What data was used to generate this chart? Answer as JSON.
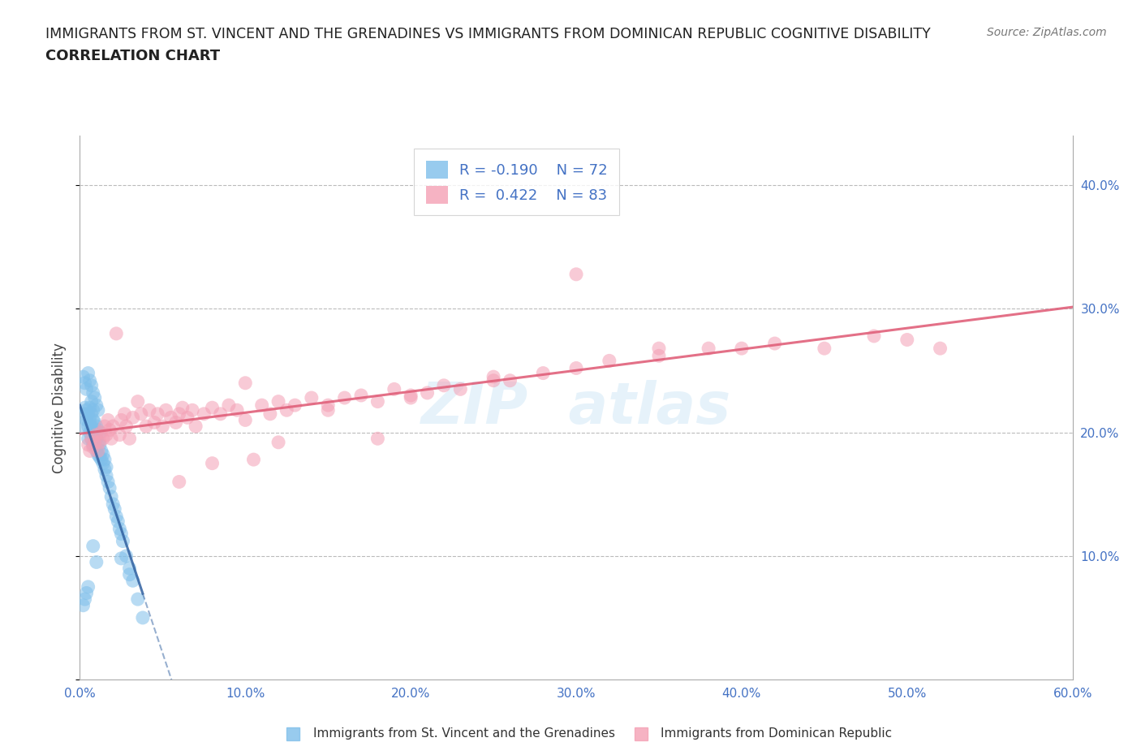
{
  "title_line1": "IMMIGRANTS FROM ST. VINCENT AND THE GRENADINES VS IMMIGRANTS FROM DOMINICAN REPUBLIC COGNITIVE DISABILITY",
  "title_line2": "CORRELATION CHART",
  "source": "Source: ZipAtlas.com",
  "ylabel": "Cognitive Disability",
  "xlim": [
    0.0,
    0.6
  ],
  "ylim": [
    0.0,
    0.44
  ],
  "x_ticks": [
    0.0,
    0.1,
    0.2,
    0.3,
    0.4,
    0.5,
    0.6
  ],
  "x_tick_labels": [
    "0.0%",
    "10.0%",
    "20.0%",
    "30.0%",
    "40.0%",
    "50.0%",
    "60.0%"
  ],
  "y_ticks": [
    0.0,
    0.1,
    0.2,
    0.3,
    0.4
  ],
  "right_y_ticks": [
    0.1,
    0.2,
    0.3,
    0.4
  ],
  "right_y_tick_labels": [
    "10.0%",
    "20.0%",
    "30.0%",
    "40.0%"
  ],
  "blue_R": -0.19,
  "blue_N": 72,
  "pink_R": 0.422,
  "pink_N": 83,
  "blue_color": "#7fbfea",
  "pink_color": "#f4a0b5",
  "blue_line_color": "#3060a0",
  "pink_line_color": "#e0607a",
  "blue_label": "Immigrants from St. Vincent and the Grenadines",
  "pink_label": "Immigrants from Dominican Republic",
  "legend_text_color": "#4472c4",
  "grid_color": "#bbbbbb",
  "blue_scatter_x": [
    0.002,
    0.003,
    0.003,
    0.004,
    0.004,
    0.005,
    0.005,
    0.005,
    0.006,
    0.006,
    0.006,
    0.007,
    0.007,
    0.007,
    0.007,
    0.008,
    0.008,
    0.008,
    0.008,
    0.009,
    0.009,
    0.009,
    0.01,
    0.01,
    0.01,
    0.011,
    0.011,
    0.011,
    0.012,
    0.012,
    0.012,
    0.013,
    0.013,
    0.014,
    0.014,
    0.015,
    0.015,
    0.016,
    0.016,
    0.017,
    0.018,
    0.019,
    0.02,
    0.021,
    0.022,
    0.023,
    0.024,
    0.025,
    0.026,
    0.028,
    0.03,
    0.032,
    0.035,
    0.038,
    0.002,
    0.003,
    0.004,
    0.005,
    0.006,
    0.007,
    0.008,
    0.009,
    0.01,
    0.011,
    0.002,
    0.003,
    0.004,
    0.005,
    0.025,
    0.03,
    0.008,
    0.01
  ],
  "blue_scatter_y": [
    0.205,
    0.215,
    0.22,
    0.21,
    0.218,
    0.195,
    0.205,
    0.215,
    0.2,
    0.21,
    0.22,
    0.195,
    0.205,
    0.215,
    0.225,
    0.19,
    0.2,
    0.21,
    0.218,
    0.192,
    0.2,
    0.208,
    0.185,
    0.195,
    0.205,
    0.182,
    0.192,
    0.202,
    0.18,
    0.19,
    0.2,
    0.178,
    0.185,
    0.175,
    0.182,
    0.17,
    0.178,
    0.165,
    0.172,
    0.16,
    0.155,
    0.148,
    0.142,
    0.138,
    0.132,
    0.128,
    0.122,
    0.118,
    0.112,
    0.1,
    0.09,
    0.08,
    0.065,
    0.05,
    0.245,
    0.24,
    0.235,
    0.248,
    0.242,
    0.238,
    0.232,
    0.228,
    0.222,
    0.218,
    0.06,
    0.065,
    0.07,
    0.075,
    0.098,
    0.085,
    0.108,
    0.095
  ],
  "pink_scatter_x": [
    0.005,
    0.006,
    0.007,
    0.008,
    0.009,
    0.01,
    0.011,
    0.012,
    0.013,
    0.014,
    0.015,
    0.016,
    0.017,
    0.018,
    0.019,
    0.02,
    0.022,
    0.024,
    0.025,
    0.027,
    0.028,
    0.03,
    0.032,
    0.035,
    0.037,
    0.04,
    0.042,
    0.045,
    0.047,
    0.05,
    0.052,
    0.055,
    0.058,
    0.06,
    0.062,
    0.065,
    0.068,
    0.07,
    0.075,
    0.08,
    0.085,
    0.09,
    0.095,
    0.1,
    0.105,
    0.11,
    0.115,
    0.12,
    0.125,
    0.13,
    0.14,
    0.15,
    0.16,
    0.17,
    0.18,
    0.19,
    0.2,
    0.21,
    0.22,
    0.23,
    0.25,
    0.26,
    0.28,
    0.3,
    0.32,
    0.35,
    0.38,
    0.4,
    0.42,
    0.45,
    0.48,
    0.5,
    0.52,
    0.3,
    0.35,
    0.1,
    0.15,
    0.06,
    0.08,
    0.12,
    0.2,
    0.25,
    0.18
  ],
  "pink_scatter_y": [
    0.19,
    0.185,
    0.195,
    0.188,
    0.192,
    0.198,
    0.185,
    0.192,
    0.2,
    0.195,
    0.205,
    0.198,
    0.21,
    0.202,
    0.195,
    0.205,
    0.28,
    0.198,
    0.21,
    0.215,
    0.205,
    0.195,
    0.212,
    0.225,
    0.215,
    0.205,
    0.218,
    0.208,
    0.215,
    0.205,
    0.218,
    0.212,
    0.208,
    0.215,
    0.22,
    0.212,
    0.218,
    0.205,
    0.215,
    0.22,
    0.215,
    0.222,
    0.218,
    0.21,
    0.178,
    0.222,
    0.215,
    0.225,
    0.218,
    0.222,
    0.228,
    0.222,
    0.228,
    0.23,
    0.225,
    0.235,
    0.228,
    0.232,
    0.238,
    0.235,
    0.245,
    0.242,
    0.248,
    0.252,
    0.258,
    0.262,
    0.268,
    0.268,
    0.272,
    0.268,
    0.278,
    0.275,
    0.268,
    0.328,
    0.268,
    0.24,
    0.218,
    0.16,
    0.175,
    0.192,
    0.23,
    0.242,
    0.195
  ]
}
